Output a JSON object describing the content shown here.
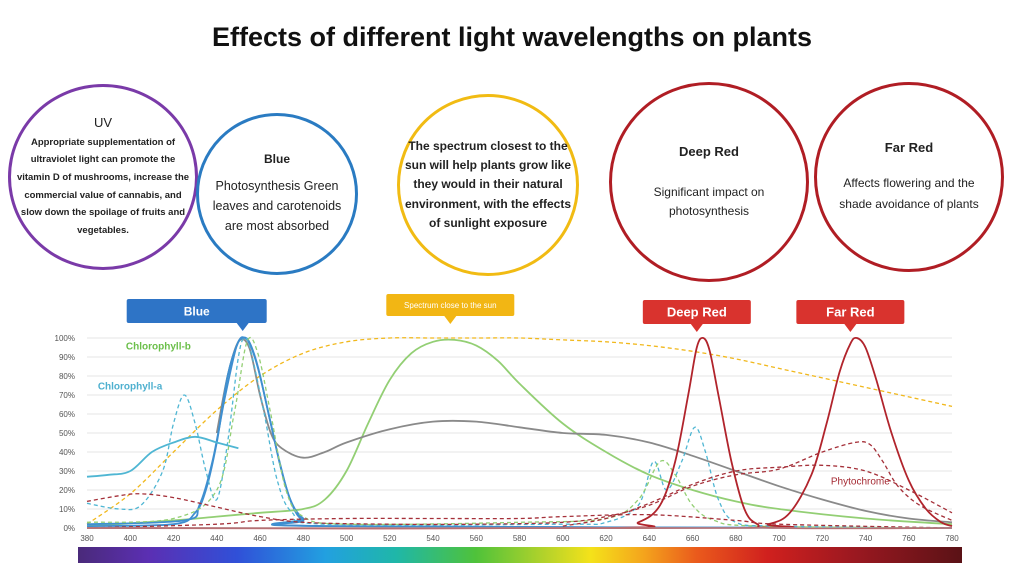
{
  "title": "Effects of different light wavelengths on plants",
  "bubbles": {
    "uv": {
      "head": "UV",
      "body": "Appropriate supplementation of ultraviolet light can promote the vitamin D of mushrooms, increase the commercial value of cannabis, and slow down the spoilage of fruits and vegetables."
    },
    "blue": {
      "head": "Blue",
      "body": "Photosynthesis Green leaves and carotenoids are most absorbed"
    },
    "sun": {
      "body": "The spectrum closest to the sun will help plants grow like they would in their natural environment, with the effects of sunlight exposure"
    },
    "deep_red": {
      "head": "Deep Red",
      "body": "Significant impact on photosynthesis"
    },
    "far_red": {
      "head": "Far Red",
      "body": "Affects flowering and the shade avoidance of plants"
    }
  },
  "colors": {
    "uv": "#7a3aa8",
    "blue": "#2a7bc2",
    "sun": "#f1bb13",
    "red": "#b01d24",
    "tag_blue": "#2e74c6",
    "tag_sun": "#f2b614",
    "tag_red": "#d9332e",
    "sunlight_curve": "#f1b81c",
    "green_curve": "#93cf74",
    "gray_curve": "#8a8a8a",
    "blue_curve": "#3f8fd0",
    "teal_curve": "#4fb6d3",
    "red_curve": "#b1242c",
    "dark_red_curve": "#a53039",
    "chlorophyll_b_label": "#6bbf4a",
    "chlorophyll_a_label": "#4fb0cf",
    "phytochrome_label": "#a52a33"
  },
  "chart_data": {
    "type": "line",
    "x_range": [
      380,
      780
    ],
    "y_range": [
      0,
      100
    ],
    "x_ticks": [
      380,
      400,
      420,
      440,
      460,
      480,
      500,
      520,
      540,
      560,
      580,
      600,
      620,
      640,
      660,
      680,
      700,
      720,
      740,
      760,
      780
    ],
    "y_ticks": [
      "0%",
      "10%",
      "20%",
      "30%",
      "40%",
      "50%",
      "60%",
      "70%",
      "80%",
      "90%",
      "100%"
    ],
    "band_tags": [
      {
        "label": "Blue",
        "x": 452
      },
      {
        "label": "Spectrum close to the sun",
        "x": 548
      },
      {
        "label": "Deep Red",
        "x": 662
      },
      {
        "label": "Far Red",
        "x": 733
      }
    ],
    "curve_labels": [
      {
        "label": "Chlorophyll-b",
        "x": 398,
        "y": 94
      },
      {
        "label": "Chlorophyll-a",
        "x": 385,
        "y": 73
      },
      {
        "label": "Phytochrome",
        "x": 724,
        "y": 23
      }
    ],
    "series": [
      {
        "key": "sunlight",
        "style": "dashed",
        "color_key": "sunlight_curve",
        "points": [
          [
            380,
            2
          ],
          [
            400,
            18
          ],
          [
            420,
            40
          ],
          [
            440,
            62
          ],
          [
            460,
            80
          ],
          [
            480,
            92
          ],
          [
            500,
            98
          ],
          [
            520,
            100
          ],
          [
            540,
            100
          ],
          [
            560,
            100
          ],
          [
            580,
            100
          ],
          [
            600,
            99
          ],
          [
            620,
            98
          ],
          [
            640,
            96
          ],
          [
            660,
            93
          ],
          [
            680,
            89
          ],
          [
            700,
            84
          ],
          [
            720,
            79
          ],
          [
            740,
            74
          ],
          [
            760,
            69
          ],
          [
            780,
            64
          ]
        ]
      },
      {
        "key": "spectrum_green",
        "style": "solid",
        "color_key": "green_curve",
        "points": [
          [
            380,
            1
          ],
          [
            420,
            4
          ],
          [
            440,
            6
          ],
          [
            460,
            8
          ],
          [
            480,
            10
          ],
          [
            490,
            15
          ],
          [
            500,
            30
          ],
          [
            510,
            55
          ],
          [
            520,
            78
          ],
          [
            530,
            92
          ],
          [
            540,
            98
          ],
          [
            550,
            99
          ],
          [
            560,
            96
          ],
          [
            570,
            88
          ],
          [
            580,
            76
          ],
          [
            600,
            55
          ],
          [
            620,
            40
          ],
          [
            640,
            28
          ],
          [
            660,
            20
          ],
          [
            680,
            14
          ],
          [
            700,
            10
          ],
          [
            740,
            5
          ],
          [
            780,
            2
          ]
        ]
      },
      {
        "key": "gray",
        "style": "solid",
        "color_key": "gray_curve",
        "points": [
          [
            440,
            50
          ],
          [
            445,
            80
          ],
          [
            450,
            98
          ],
          [
            455,
            95
          ],
          [
            460,
            70
          ],
          [
            465,
            50
          ],
          [
            470,
            42
          ],
          [
            480,
            37
          ],
          [
            490,
            40
          ],
          [
            500,
            45
          ],
          [
            520,
            52
          ],
          [
            540,
            56
          ],
          [
            560,
            56
          ],
          [
            580,
            53
          ],
          [
            600,
            50
          ],
          [
            620,
            49
          ],
          [
            640,
            45
          ],
          [
            660,
            38
          ],
          [
            680,
            30
          ],
          [
            700,
            22
          ],
          [
            720,
            15
          ],
          [
            740,
            9
          ],
          [
            760,
            5
          ],
          [
            780,
            3
          ]
        ]
      },
      {
        "key": "blue_peak",
        "style": "solid",
        "color_key": "blue_curve",
        "points": [
          [
            380,
            1
          ],
          [
            420,
            2
          ],
          [
            430,
            8
          ],
          [
            435,
            20
          ],
          [
            440,
            45
          ],
          [
            445,
            80
          ],
          [
            450,
            98
          ],
          [
            453,
            100
          ],
          [
            456,
            95
          ],
          [
            460,
            80
          ],
          [
            465,
            55
          ],
          [
            470,
            30
          ],
          [
            475,
            12
          ],
          [
            480,
            4
          ],
          [
            490,
            1
          ],
          [
            780,
            0
          ]
        ]
      },
      {
        "key": "blue_peak_2",
        "style": "solid",
        "color_key": "blue_curve",
        "points": [
          [
            380,
            2
          ],
          [
            425,
            4
          ],
          [
            432,
            12
          ],
          [
            438,
            35
          ],
          [
            444,
            70
          ],
          [
            449,
            95
          ],
          [
            452,
            100
          ],
          [
            455,
            98
          ],
          [
            459,
            85
          ],
          [
            464,
            60
          ],
          [
            469,
            35
          ],
          [
            474,
            15
          ],
          [
            480,
            5
          ],
          [
            490,
            1
          ],
          [
            780,
            0
          ]
        ]
      },
      {
        "key": "chlorophyll_a_dashed",
        "style": "dashed",
        "color_key": "teal_curve",
        "points": [
          [
            380,
            13
          ],
          [
            395,
            10
          ],
          [
            405,
            12
          ],
          [
            415,
            30
          ],
          [
            420,
            55
          ],
          [
            425,
            70
          ],
          [
            430,
            55
          ],
          [
            435,
            30
          ],
          [
            440,
            15
          ],
          [
            445,
            45
          ],
          [
            450,
            90
          ],
          [
            453,
            100
          ],
          [
            456,
            92
          ],
          [
            462,
            60
          ],
          [
            468,
            25
          ],
          [
            475,
            8
          ],
          [
            490,
            2
          ],
          [
            600,
            2
          ],
          [
            620,
            3
          ],
          [
            635,
            12
          ],
          [
            642,
            35
          ],
          [
            648,
            20
          ],
          [
            655,
            35
          ],
          [
            661,
            53
          ],
          [
            666,
            40
          ],
          [
            672,
            15
          ],
          [
            680,
            3
          ],
          [
            700,
            1
          ],
          [
            780,
            0
          ]
        ]
      },
      {
        "key": "chlorophyll_a_left",
        "style": "solid",
        "color_key": "teal_curve",
        "points": [
          [
            380,
            27
          ],
          [
            390,
            28
          ],
          [
            400,
            30
          ],
          [
            410,
            40
          ],
          [
            420,
            45
          ],
          [
            430,
            48
          ],
          [
            440,
            45
          ],
          [
            450,
            42
          ]
        ]
      },
      {
        "key": "chlorophyll_b_dashed",
        "style": "dashed",
        "color_key": "green_curve",
        "points": [
          [
            380,
            3
          ],
          [
            420,
            5
          ],
          [
            440,
            20
          ],
          [
            448,
            60
          ],
          [
            454,
            98
          ],
          [
            459,
            92
          ],
          [
            465,
            60
          ],
          [
            472,
            20
          ],
          [
            480,
            6
          ],
          [
            500,
            2
          ],
          [
            580,
            3
          ],
          [
            620,
            5
          ],
          [
            635,
            15
          ],
          [
            645,
            35
          ],
          [
            652,
            28
          ],
          [
            660,
            12
          ],
          [
            670,
            4
          ],
          [
            690,
            1
          ],
          [
            780,
            0
          ]
        ]
      },
      {
        "key": "deep_red",
        "style": "solid",
        "color_key": "red_curve",
        "points": [
          [
            380,
            0
          ],
          [
            620,
            0
          ],
          [
            635,
            3
          ],
          [
            645,
            12
          ],
          [
            652,
            35
          ],
          [
            658,
            70
          ],
          [
            662,
            95
          ],
          [
            665,
            100
          ],
          [
            668,
            93
          ],
          [
            672,
            70
          ],
          [
            678,
            35
          ],
          [
            684,
            10
          ],
          [
            690,
            2
          ],
          [
            700,
            0
          ],
          [
            780,
            0
          ]
        ]
      },
      {
        "key": "far_red",
        "style": "solid",
        "color_key": "red_curve",
        "points": [
          [
            380,
            0
          ],
          [
            680,
            0
          ],
          [
            695,
            2
          ],
          [
            705,
            8
          ],
          [
            715,
            28
          ],
          [
            722,
            55
          ],
          [
            728,
            82
          ],
          [
            733,
            97
          ],
          [
            736,
            100
          ],
          [
            740,
            95
          ],
          [
            745,
            78
          ],
          [
            752,
            50
          ],
          [
            760,
            25
          ],
          [
            768,
            10
          ],
          [
            775,
            3
          ],
          [
            780,
            1
          ]
        ]
      },
      {
        "key": "phytochrome",
        "style": "dashed",
        "color_key": "dark_red_curve",
        "points": [
          [
            380,
            14
          ],
          [
            395,
            17
          ],
          [
            405,
            18
          ],
          [
            420,
            16
          ],
          [
            440,
            11
          ],
          [
            460,
            6
          ],
          [
            480,
            3
          ],
          [
            520,
            2
          ],
          [
            560,
            2
          ],
          [
            600,
            3
          ],
          [
            620,
            6
          ],
          [
            640,
            12
          ],
          [
            660,
            22
          ],
          [
            680,
            28
          ],
          [
            700,
            31
          ],
          [
            720,
            40
          ],
          [
            735,
            45
          ],
          [
            742,
            44
          ],
          [
            748,
            35
          ],
          [
            755,
            22
          ],
          [
            765,
            12
          ],
          [
            780,
            4
          ]
        ]
      },
      {
        "key": "phytochrome_2",
        "style": "dashed",
        "color_key": "dark_red_curve",
        "points": [
          [
            600,
            1
          ],
          [
            620,
            5
          ],
          [
            640,
            13
          ],
          [
            660,
            23
          ],
          [
            680,
            30
          ],
          [
            700,
            32
          ],
          [
            720,
            33
          ],
          [
            740,
            30
          ],
          [
            760,
            20
          ],
          [
            780,
            8
          ]
        ]
      },
      {
        "key": "purple_base",
        "style": "dashed",
        "color_key": "dark_red_curve",
        "points": [
          [
            380,
            0
          ],
          [
            440,
            2
          ],
          [
            460,
            4
          ],
          [
            500,
            5
          ],
          [
            540,
            5
          ],
          [
            580,
            5
          ],
          [
            600,
            6
          ],
          [
            640,
            7
          ],
          [
            680,
            4
          ],
          [
            700,
            2
          ],
          [
            780,
            0
          ]
        ]
      }
    ]
  }
}
